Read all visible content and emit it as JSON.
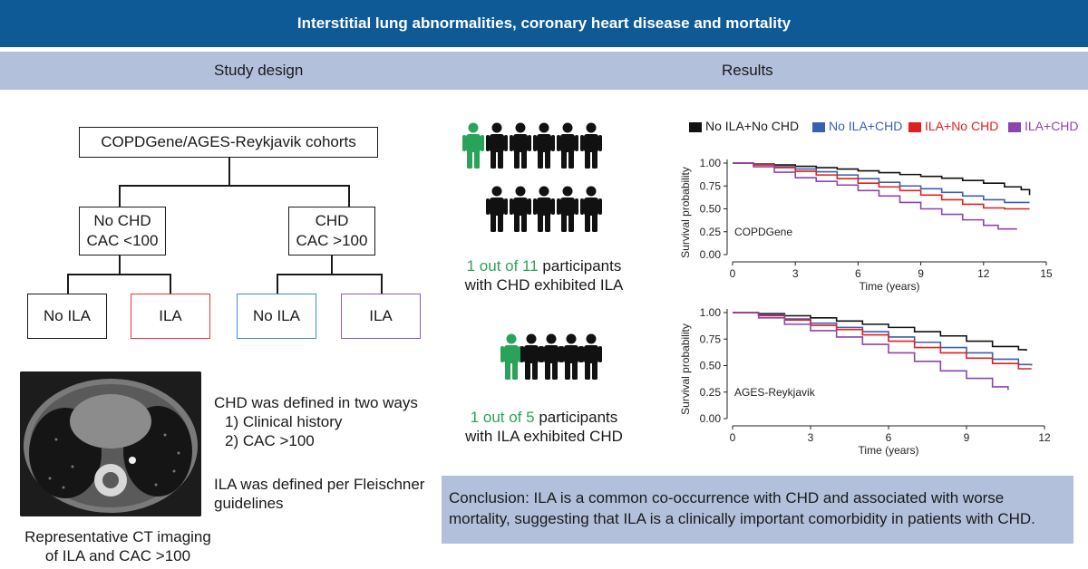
{
  "title": "Interstitial lung abnormalities, coronary heart disease and mortality",
  "sections": {
    "left": "Study design",
    "right": "Results"
  },
  "flowchart": {
    "root": "COPDGene/AGES-Reykjavik cohorts",
    "no_chd": [
      "No CHD",
      "CAC <100"
    ],
    "chd": [
      "CHD",
      "CAC >100"
    ],
    "leaves": [
      {
        "label": "No ILA",
        "color": "#1a1a1a"
      },
      {
        "label": "ILA",
        "color": "#e53935"
      },
      {
        "label": "No ILA",
        "color": "#3f8fd2"
      },
      {
        "label": "ILA",
        "color": "#8e5bb5"
      }
    ]
  },
  "definitions": {
    "chd_heading": "CHD was defined in two ways",
    "chd_items": [
      "1) Clinical history",
      "2) CAC >100"
    ],
    "ila_lines": [
      "ILA was defined per Fleischner",
      "guidelines"
    ]
  },
  "ct_caption": [
    "Representative CT imaging",
    "of ILA and CAC >100"
  ],
  "pictograms": [
    {
      "highlight_text": "1 out of 11",
      "rest_text": " participants",
      "line2": "with CHD exhibited ILA",
      "total": 11,
      "highlighted": 1
    },
    {
      "highlight_text": "1 out of 5",
      "rest_text": " participants",
      "line2": "with ILA exhibited CHD",
      "total": 5,
      "highlighted": 1
    }
  ],
  "colors": {
    "title_bg": "#0d5a96",
    "section_bg": "#b2c0dc",
    "accent_green": "#2aa35a",
    "person": "#111111"
  },
  "chart_data": [
    {
      "type": "line",
      "title": "COPDGene",
      "xlabel": "Time (years)",
      "ylabel": "Survival probability",
      "xlim": [
        0,
        15
      ],
      "ylim": [
        0,
        1
      ],
      "xticks": [
        0,
        3,
        6,
        9,
        12,
        15
      ],
      "yticks": [
        "0.00",
        "0.25",
        "0.50",
        "0.75",
        "1.00"
      ],
      "series": [
        {
          "name": "No ILA+No CHD",
          "color": "#111111",
          "x": [
            0,
            1,
            2,
            3,
            4,
            5,
            6,
            7,
            8,
            9,
            10,
            11,
            12,
            13,
            13.8,
            14.2
          ],
          "y": [
            1.0,
            0.99,
            0.98,
            0.965,
            0.95,
            0.935,
            0.915,
            0.895,
            0.875,
            0.855,
            0.835,
            0.81,
            0.78,
            0.74,
            0.71,
            0.65
          ]
        },
        {
          "name": "No ILA+CHD",
          "color": "#3b5fb0",
          "x": [
            0,
            1,
            2,
            3,
            4,
            5,
            6,
            7,
            8,
            9,
            10,
            11,
            12,
            13,
            14.2
          ],
          "y": [
            1.0,
            0.985,
            0.96,
            0.935,
            0.905,
            0.87,
            0.83,
            0.79,
            0.75,
            0.72,
            0.68,
            0.64,
            0.6,
            0.57,
            0.57
          ]
        },
        {
          "name": "ILA+No CHD",
          "color": "#e02020",
          "x": [
            0,
            1,
            2,
            3,
            4,
            5,
            6,
            7,
            8,
            9,
            10,
            11,
            12,
            13,
            14.2
          ],
          "y": [
            1.0,
            0.98,
            0.95,
            0.91,
            0.87,
            0.83,
            0.78,
            0.74,
            0.7,
            0.65,
            0.6,
            0.55,
            0.51,
            0.5,
            0.5
          ]
        },
        {
          "name": "ILA+CHD",
          "color": "#8e44ad",
          "x": [
            0,
            1,
            2,
            3,
            4,
            5,
            6,
            7,
            8,
            9,
            10,
            11,
            12,
            12.7,
            13.6
          ],
          "y": [
            1.0,
            0.96,
            0.9,
            0.84,
            0.8,
            0.76,
            0.7,
            0.64,
            0.57,
            0.5,
            0.44,
            0.38,
            0.32,
            0.28,
            0.28
          ]
        }
      ],
      "legend": "top"
    },
    {
      "type": "line",
      "title": "AGES-Reykjavik",
      "xlabel": "Time (years)",
      "ylabel": "Survival probability",
      "xlim": [
        0,
        12
      ],
      "ylim": [
        0,
        1
      ],
      "xticks": [
        0,
        3,
        6,
        9,
        12
      ],
      "yticks": [
        "0.00",
        "0.25",
        "0.50",
        "0.75",
        "1.00"
      ],
      "series": [
        {
          "name": "No ILA+No CHD",
          "color": "#111111",
          "x": [
            0,
            1,
            2,
            3,
            4,
            5,
            6,
            7,
            8,
            9,
            10,
            11,
            11.3
          ],
          "y": [
            1.0,
            0.99,
            0.97,
            0.95,
            0.92,
            0.89,
            0.86,
            0.82,
            0.78,
            0.73,
            0.68,
            0.65,
            0.64
          ]
        },
        {
          "name": "No ILA+CHD",
          "color": "#3b5fb0",
          "x": [
            0,
            1,
            2,
            3,
            4,
            5,
            6,
            7,
            8,
            9,
            10,
            11,
            11.5
          ],
          "y": [
            1.0,
            0.98,
            0.94,
            0.9,
            0.86,
            0.82,
            0.77,
            0.72,
            0.67,
            0.62,
            0.56,
            0.51,
            0.5
          ]
        },
        {
          "name": "ILA+No CHD",
          "color": "#e02020",
          "x": [
            0,
            1,
            2,
            3,
            4,
            5,
            6,
            7,
            8,
            9,
            10,
            11,
            11.5
          ],
          "y": [
            1.0,
            0.97,
            0.93,
            0.88,
            0.84,
            0.79,
            0.73,
            0.67,
            0.62,
            0.57,
            0.52,
            0.47,
            0.47
          ]
        },
        {
          "name": "ILA+CHD",
          "color": "#8e44ad",
          "x": [
            0,
            1,
            2,
            3,
            4,
            5,
            6,
            7,
            8,
            9,
            10,
            10.6
          ],
          "y": [
            1.0,
            0.95,
            0.89,
            0.83,
            0.77,
            0.7,
            0.62,
            0.54,
            0.45,
            0.38,
            0.3,
            0.27
          ]
        }
      ]
    }
  ],
  "conclusion": "Conclusion: ILA is a common co-occurrence with CHD and associated with worse mortality, suggesting that ILA is a clinically important comorbidity in patients with CHD."
}
